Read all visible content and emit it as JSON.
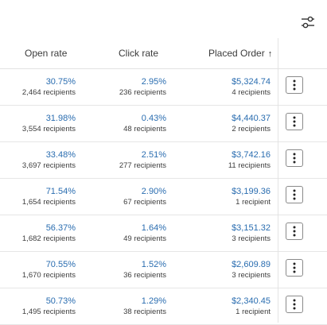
{
  "header": {
    "filter_icon": "filter-sliders-icon",
    "columns": {
      "open_rate": "Open rate",
      "click_rate": "Click rate",
      "placed_order": "Placed Order"
    },
    "sort_icon": "arrow-up-icon"
  },
  "rows": [
    {
      "open_rate": "30.75%",
      "open_recipients": "2,464 recipients",
      "click_rate": "2.95%",
      "click_recipients": "236 recipients",
      "placed_order": "$5,324.74",
      "order_recipients": "4 recipients"
    },
    {
      "open_rate": "31.98%",
      "open_recipients": "3,554 recipients",
      "click_rate": "0.43%",
      "click_recipients": "48 recipients",
      "placed_order": "$4,440.37",
      "order_recipients": "2 recipients"
    },
    {
      "open_rate": "33.48%",
      "open_recipients": "3,697 recipients",
      "click_rate": "2.51%",
      "click_recipients": "277 recipients",
      "placed_order": "$3,742.16",
      "order_recipients": "11 recipients"
    },
    {
      "open_rate": "71.54%",
      "open_recipients": "1,654 recipients",
      "click_rate": "2.90%",
      "click_recipients": "67 recipients",
      "placed_order": "$3,199.36",
      "order_recipients": "1 recipient"
    },
    {
      "open_rate": "56.37%",
      "open_recipients": "1,682 recipients",
      "click_rate": "1.64%",
      "click_recipients": "49 recipients",
      "placed_order": "$3,151.32",
      "order_recipients": "3 recipients"
    },
    {
      "open_rate": "70.55%",
      "open_recipients": "1,670 recipients",
      "click_rate": "1.52%",
      "click_recipients": "36 recipients",
      "placed_order": "$2,609.89",
      "order_recipients": "3 recipients"
    },
    {
      "open_rate": "50.73%",
      "open_recipients": "1,495 recipients",
      "click_rate": "1.29%",
      "click_recipients": "38 recipients",
      "placed_order": "$2,340.45",
      "order_recipients": "1 recipient"
    }
  ],
  "row_action_icon": "more-vertical-icon",
  "colors": {
    "link": "#2a6db0",
    "border": "#e3e3e3"
  }
}
